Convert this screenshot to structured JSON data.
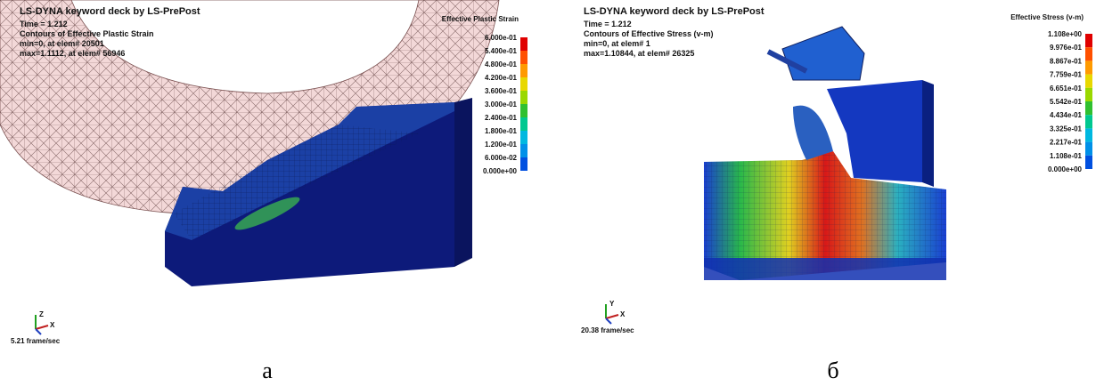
{
  "panels": [
    {
      "header": [
        "LS-DYNA keyword deck by LS-PrePost",
        "Time =      1.212",
        "Contours of Effective Plastic Strain",
        "min=0, at elem# 20501",
        "max=1.1112, at elem# 56946"
      ],
      "legend": {
        "title": "Effective Plastic Strain",
        "labels": [
          "6.000e-01",
          "5.400e-01",
          "4.800e-01",
          "4.200e-01",
          "3.600e-01",
          "3.000e-01",
          "2.400e-01",
          "1.800e-01",
          "1.200e-01",
          "6.000e-02",
          "0.000e+00"
        ]
      },
      "triad": [
        "Z",
        "X"
      ],
      "fps": "5.21 frame/sec",
      "caption": "а"
    },
    {
      "header": [
        "LS-DYNA keyword deck by LS-PrePost",
        "Time =      1.212",
        "Contours of Effective Stress (v-m)",
        "min=0, at elem# 1",
        "max=1.10844, at elem# 26325"
      ],
      "legend": {
        "title": "Effective Stress (v-m)",
        "labels": [
          "1.108e+00",
          "9.976e-01",
          "8.867e-01",
          "7.759e-01",
          "6.651e-01",
          "5.542e-01",
          "4.434e-01",
          "3.325e-01",
          "2.217e-01",
          "1.108e-01",
          "0.000e+00"
        ]
      },
      "triad": [
        "Y",
        "X"
      ],
      "fps": "20.38 frame/sec",
      "caption": "б"
    }
  ]
}
